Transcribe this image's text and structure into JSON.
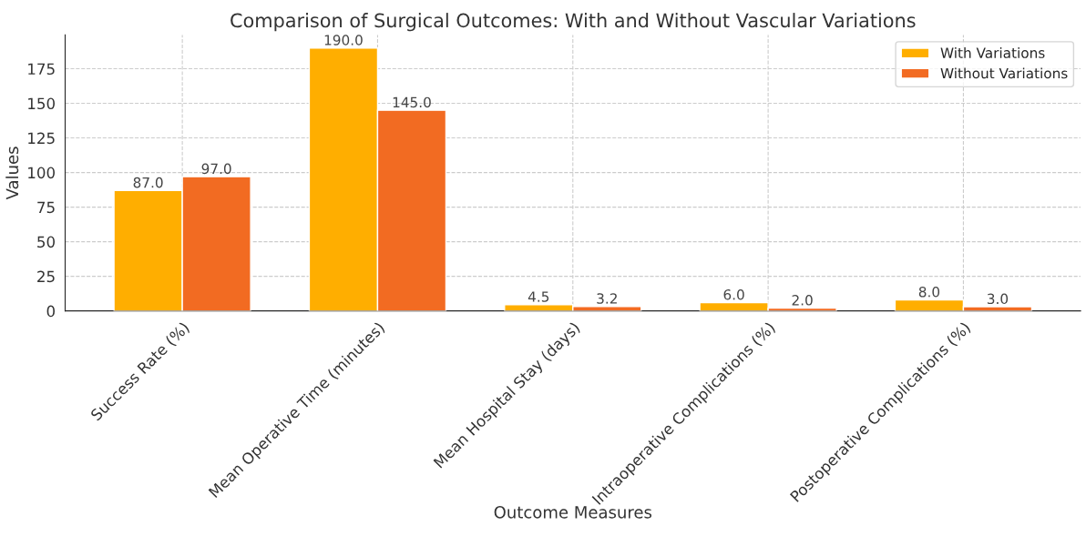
{
  "chart_data": {
    "type": "bar",
    "title": "Comparison of Surgical Outcomes: With and Without Vascular Variations",
    "xlabel": "Outcome Measures",
    "ylabel": "Values",
    "categories": [
      "Success Rate (%)",
      "Mean Operative Time (minutes)",
      "Mean Hospital Stay (days)",
      "Intraoperative Complications (%)",
      "Postoperative Complications (%)"
    ],
    "series": [
      {
        "name": "With Variations",
        "color": "#ffae00",
        "values": [
          87,
          190,
          4.5,
          6,
          8
        ],
        "value_labels": [
          "87.0",
          "190.0",
          "4.5",
          "6.0",
          "8.0"
        ]
      },
      {
        "name": "Without Variations",
        "color": "#f26b22",
        "values": [
          97,
          145,
          3.2,
          2,
          3
        ],
        "value_labels": [
          "97.0",
          "145.0",
          "3.2",
          "2.0",
          "3.0"
        ]
      }
    ],
    "ylim": [
      0,
      199.5
    ],
    "yticks": [
      0,
      25,
      50,
      75,
      100,
      125,
      150,
      175
    ],
    "grid": true,
    "legend": "upper right"
  }
}
